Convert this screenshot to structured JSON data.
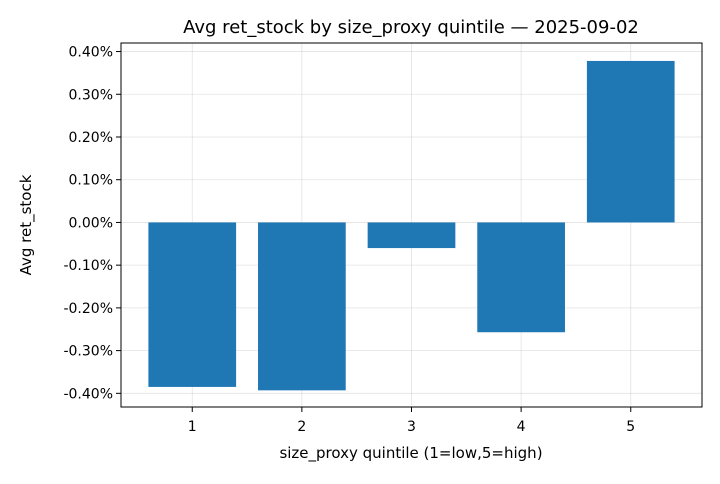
{
  "chart_data": {
    "type": "bar",
    "title": "Avg ret_stock by size_proxy quintile — 2025-09-02",
    "xlabel": "size_proxy quintile (1=low,5=high)",
    "ylabel": "Avg ret_stock",
    "categories": [
      "1",
      "2",
      "3",
      "4",
      "5"
    ],
    "values": [
      -0.00385,
      -0.00393,
      -0.0006,
      -0.00257,
      0.00378
    ],
    "ylim": [
      -0.00432,
      0.0042
    ],
    "yticks": [
      -0.004,
      -0.003,
      -0.002,
      -0.001,
      0.0,
      0.001,
      0.002,
      0.003,
      0.004
    ],
    "ytick_labels": [
      "-0.40%",
      "-0.30%",
      "-0.20%",
      "-0.10%",
      "0.00%",
      "0.10%",
      "0.20%",
      "0.30%",
      "0.40%"
    ],
    "grid": true,
    "bar_color": "#1f77b4"
  }
}
